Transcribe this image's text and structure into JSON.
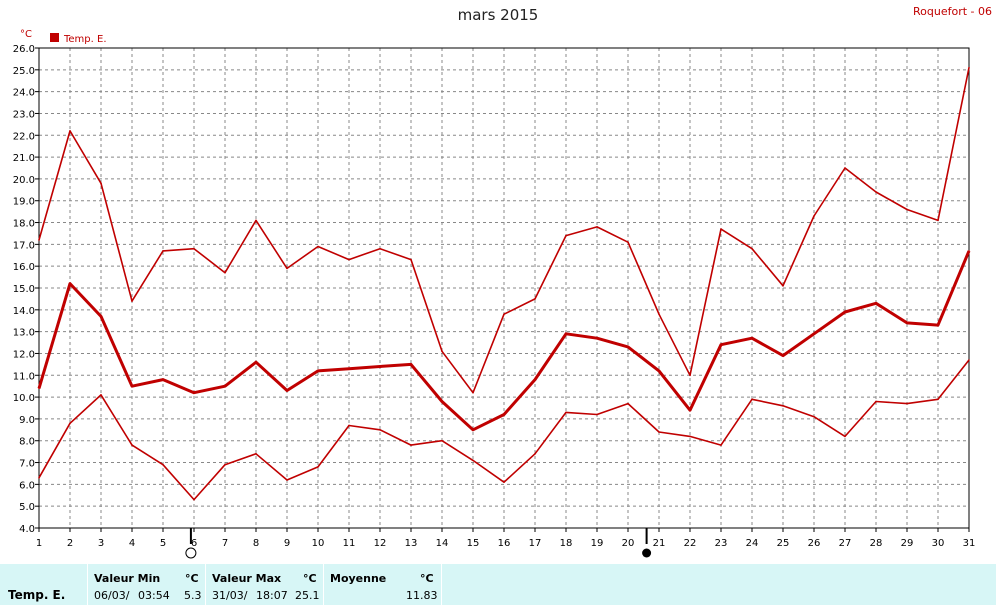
{
  "title": "mars 2015",
  "station": "Roquefort - 06",
  "colors": {
    "series": "#c00000",
    "grid": "#888888",
    "footer_bg": "#d7f6f6"
  },
  "moon": {
    "full_moon_day": 5.9,
    "new_moon_day": 20.6
  },
  "chart_data": {
    "type": "line",
    "ylabel": "°C",
    "ylim": [
      4.0,
      26.0
    ],
    "xlim": [
      1,
      31
    ],
    "grid": true,
    "legend": [
      {
        "label": "Temp. E.",
        "position": "top-left"
      }
    ],
    "x": [
      1,
      2,
      3,
      4,
      5,
      6,
      7,
      8,
      9,
      10,
      11,
      12,
      13,
      14,
      15,
      16,
      17,
      18,
      19,
      20,
      21,
      22,
      23,
      24,
      25,
      26,
      27,
      28,
      29,
      30,
      31
    ],
    "x_tick_labels": [
      "1",
      "2",
      "3",
      "4",
      "5",
      "6",
      "7",
      "8",
      "9",
      "10",
      "11",
      "12",
      "13",
      "14",
      "15",
      "16",
      "17",
      "18",
      "19",
      "20",
      "21",
      "22",
      "23",
      "24",
      "25",
      "26",
      "27",
      "28",
      "29",
      "30",
      "31"
    ],
    "y_tick_labels": [
      "4.0",
      "5.0",
      "6.0",
      "7.0",
      "8.0",
      "9.0",
      "10.0",
      "11.0",
      "12.0",
      "13.0",
      "14.0",
      "15.0",
      "16.0",
      "17.0",
      "18.0",
      "19.0",
      "20.0",
      "21.0",
      "22.0",
      "23.0",
      "24.0",
      "25.0",
      "26.0"
    ],
    "series": [
      {
        "role": "max",
        "width": 1.6,
        "values": [
          17.2,
          22.2,
          19.8,
          14.4,
          16.7,
          16.8,
          15.7,
          18.1,
          15.9,
          16.9,
          16.3,
          16.8,
          16.3,
          12.1,
          10.2,
          13.8,
          14.5,
          17.4,
          17.8,
          17.1,
          13.8,
          11.0,
          17.7,
          16.8,
          15.1,
          18.3,
          20.5,
          19.4,
          18.6,
          18.1,
          25.1
        ]
      },
      {
        "role": "mean",
        "width": 3,
        "values": [
          10.4,
          15.2,
          13.7,
          10.5,
          10.8,
          10.2,
          10.5,
          11.6,
          10.3,
          11.2,
          11.3,
          11.4,
          11.5,
          9.8,
          8.5,
          9.2,
          10.8,
          12.9,
          12.7,
          12.3,
          11.2,
          9.4,
          12.4,
          12.7,
          11.9,
          12.9,
          13.9,
          14.3,
          13.4,
          13.3,
          16.7
        ]
      },
      {
        "role": "min",
        "width": 1.6,
        "values": [
          6.3,
          8.8,
          10.1,
          7.8,
          6.9,
          5.3,
          6.9,
          7.4,
          6.2,
          6.8,
          8.7,
          8.5,
          7.8,
          8.0,
          7.1,
          6.1,
          7.4,
          9.3,
          9.2,
          9.7,
          8.4,
          8.2,
          7.8,
          9.9,
          9.6,
          9.1,
          8.2,
          9.8,
          9.7,
          9.9,
          11.7
        ]
      }
    ]
  },
  "footer": {
    "series_name": "Temp. E.",
    "min": {
      "label": "Valeur Min",
      "unit": "°C",
      "date": "06/03/",
      "time": "03:54",
      "value": "5.3"
    },
    "max": {
      "label": "Valeur Max",
      "unit": "°C",
      "date": "31/03/",
      "time": "18:07",
      "value": "25.1"
    },
    "avg": {
      "label": "Moyenne",
      "unit": "°C",
      "value": "11.83"
    }
  }
}
